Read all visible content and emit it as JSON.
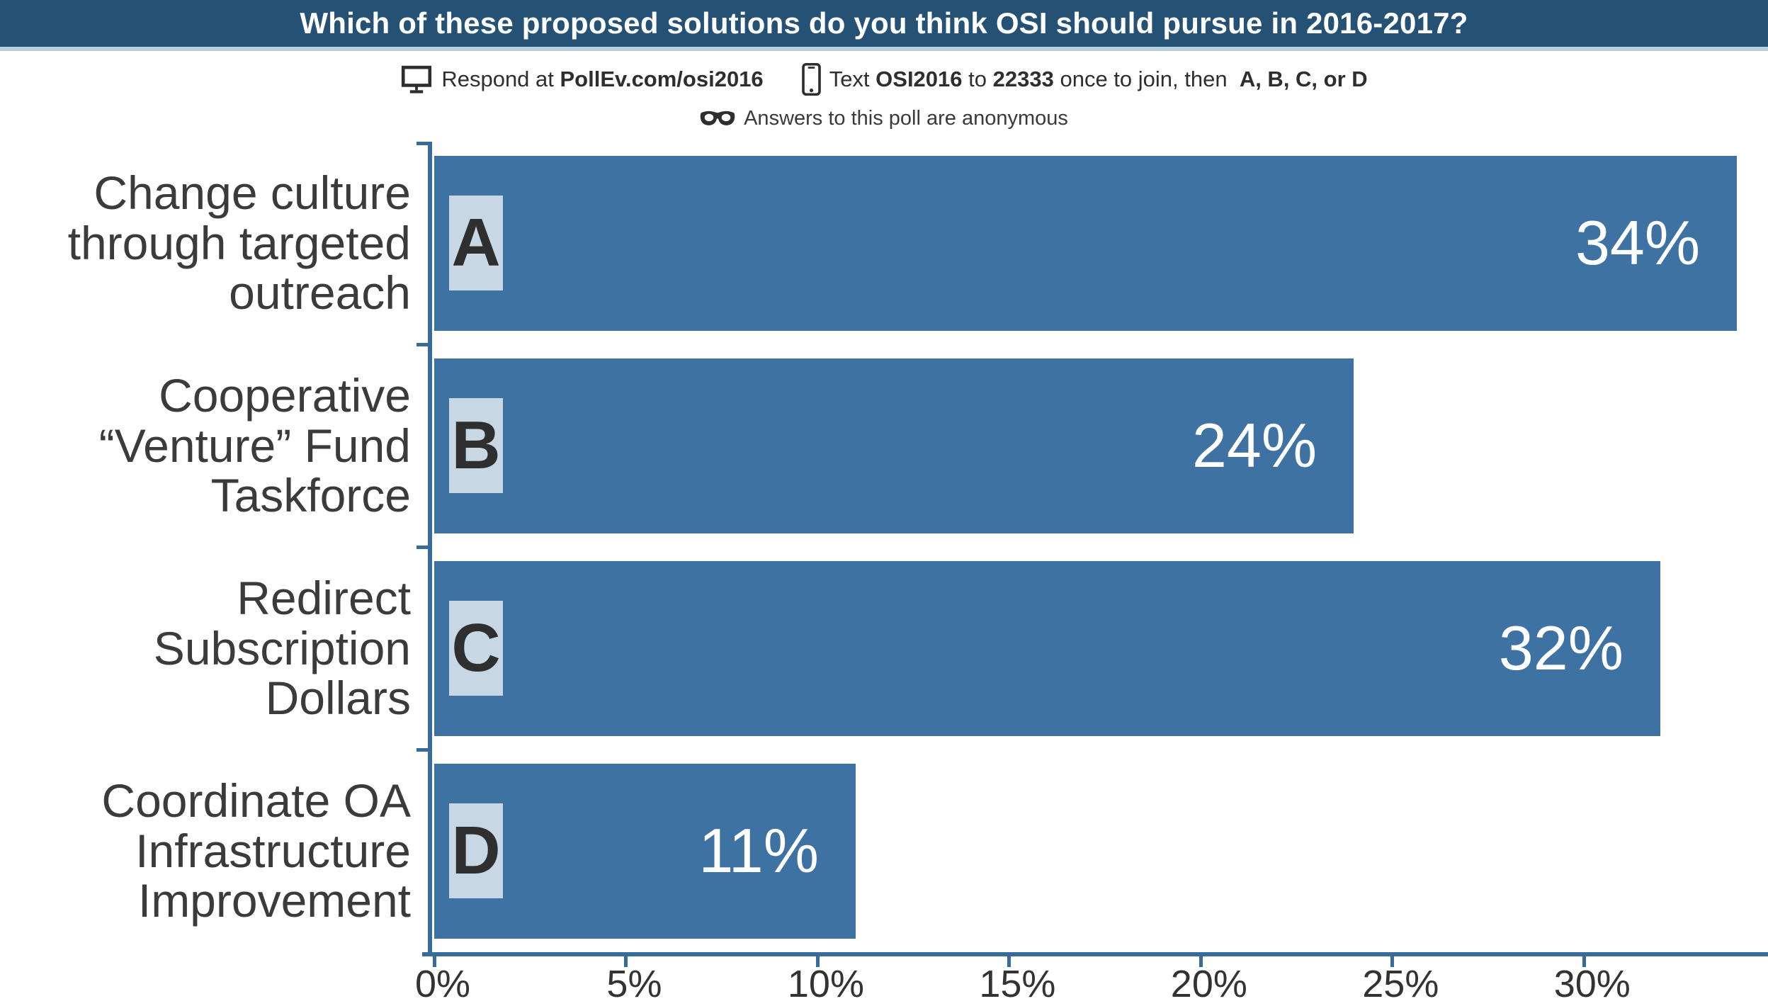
{
  "header": {
    "title": "Which of these proposed solutions do you think OSI should pursue in 2016-2017?"
  },
  "instructions": {
    "respond_segments": [
      {
        "text": "Respond at ",
        "bold": false
      },
      {
        "text": "PollEv.com/osi2016",
        "bold": true
      }
    ],
    "text_segments": [
      {
        "text": "Text ",
        "bold": false
      },
      {
        "text": "OSI2016",
        "bold": true
      },
      {
        "text": " to ",
        "bold": false
      },
      {
        "text": "22333",
        "bold": true
      },
      {
        "text": " once to join, then  ",
        "bold": false
      },
      {
        "text": "A, B, C, or D",
        "bold": true
      }
    ],
    "anonymous": "Answers to this poll are anonymous",
    "icons": [
      "monitor-icon",
      "smartphone-icon",
      "mask-icon"
    ]
  },
  "chart_data": {
    "type": "bar",
    "orientation": "horizontal",
    "title": "Which of these proposed solutions do you think OSI should pursue in 2016-2017?",
    "categories": [
      "Change culture through targeted outreach",
      "Cooperative “Venture” Fund Taskforce",
      "Redirect Subscription Dollars",
      "Coordinate OA Infrastructure Improvement"
    ],
    "category_display_lines": [
      [
        "Change culture",
        "through targeted",
        "outreach"
      ],
      [
        "Cooperative",
        "“Venture” Fund",
        "Taskforce"
      ],
      [
        "Redirect",
        "Subscription",
        "Dollars"
      ],
      [
        "Coordinate OA",
        "Infrastructure",
        "Improvement"
      ]
    ],
    "option_letters": [
      "A",
      "B",
      "C",
      "D"
    ],
    "values": [
      34,
      24,
      32,
      11
    ],
    "value_labels": [
      "34%",
      "24%",
      "32%",
      "11%"
    ],
    "xlabel": "",
    "ylabel": "",
    "xlim": [
      0,
      34.7
    ],
    "x_tick_values": [
      0,
      5,
      10,
      15,
      20,
      25,
      30
    ],
    "x_tick_labels": [
      "0%",
      "5%",
      "10%",
      "15%",
      "20%",
      "25%",
      "30%"
    ],
    "grid": false,
    "legend": false,
    "colors": {
      "bar_fill": "#3d72a2",
      "axis": "#376b9c",
      "badge_bg": "#c8d7e4",
      "badge_text": "#2f2f2f",
      "value_text": "#ffffff",
      "category_text": "#3b3b3b",
      "tick_text": "#333333",
      "header_bg": "#255174",
      "header_separator": "#b7cedd",
      "header_text": "#ffffff"
    }
  }
}
